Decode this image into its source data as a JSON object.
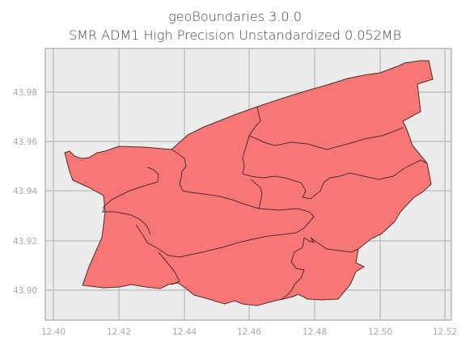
{
  "title": "geoBoundaries 3.0.0",
  "subtitle": "SMR ADM1 High Precision Unstandardized 0.052MB",
  "chart_data": {
    "type": "map",
    "x_ticks": [
      "12.40",
      "12.42",
      "12.44",
      "12.46",
      "12.48",
      "12.50",
      "12.52"
    ],
    "y_ticks": [
      "43.98",
      "43.96",
      "43.94",
      "43.92",
      "43.90"
    ],
    "grid": true,
    "region_fill": "#f77474",
    "border_color": "#5a2a2a",
    "plot_background": "#ececec",
    "grid_color": "#b8b8b8"
  }
}
